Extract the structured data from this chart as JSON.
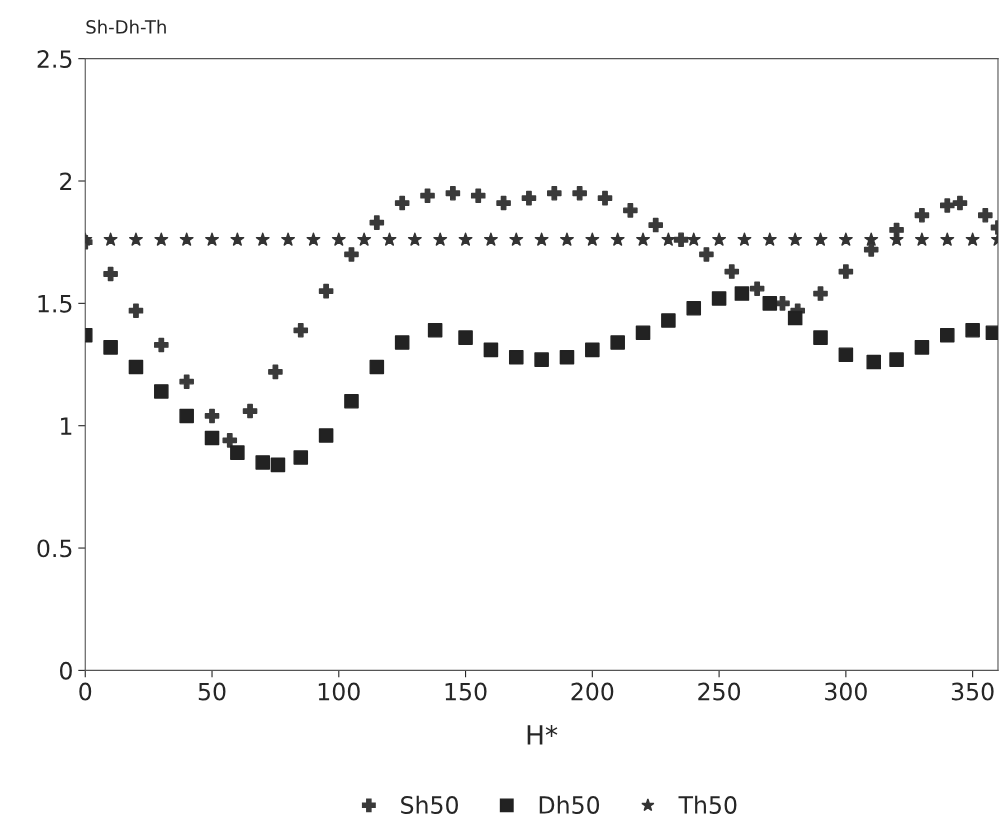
{
  "chart_data": {
    "type": "scatter",
    "xlabel": "H*",
    "ylabel": "Sh-Dh-Th",
    "xlim": [
      0,
      360
    ],
    "xticks": [
      0,
      50,
      100,
      150,
      200,
      250,
      300,
      350
    ],
    "ylim": [
      0,
      2.5
    ],
    "yticks": [
      0,
      0.5,
      1,
      1.5,
      2,
      2.5
    ],
    "grid": false,
    "legend": "bottom",
    "series": [
      {
        "name": "Sh50",
        "color": "#3a3a3a",
        "marker": "cross",
        "x": [
          0,
          10,
          20,
          30,
          40,
          50,
          57,
          65,
          75,
          85,
          95,
          105,
          115,
          125,
          135,
          145,
          155,
          165,
          175,
          185,
          195,
          205,
          215,
          225,
          235,
          245,
          255,
          265,
          275,
          281,
          290,
          300,
          310,
          320,
          330,
          340,
          345,
          355,
          360
        ],
        "values": [
          1.75,
          1.62,
          1.47,
          1.33,
          1.18,
          1.04,
          0.94,
          1.06,
          1.22,
          1.39,
          1.55,
          1.7,
          1.83,
          1.91,
          1.94,
          1.95,
          1.94,
          1.91,
          1.93,
          1.95,
          1.95,
          1.93,
          1.88,
          1.82,
          1.76,
          1.7,
          1.63,
          1.56,
          1.5,
          1.47,
          1.54,
          1.63,
          1.72,
          1.8,
          1.86,
          1.9,
          1.91,
          1.86,
          1.81
        ]
      },
      {
        "name": "Dh50",
        "color": "#222222",
        "marker": "square",
        "x": [
          0,
          10,
          20,
          30,
          40,
          50,
          60,
          70,
          76,
          85,
          95,
          105,
          115,
          125,
          138,
          150,
          160,
          170,
          180,
          190,
          200,
          210,
          220,
          230,
          240,
          250,
          259,
          270,
          280,
          290,
          300,
          311,
          320,
          330,
          340,
          350,
          358
        ],
        "values": [
          1.37,
          1.32,
          1.24,
          1.14,
          1.04,
          0.95,
          0.89,
          0.85,
          0.84,
          0.87,
          0.96,
          1.1,
          1.24,
          1.34,
          1.39,
          1.36,
          1.31,
          1.28,
          1.27,
          1.28,
          1.31,
          1.34,
          1.38,
          1.43,
          1.48,
          1.52,
          1.54,
          1.5,
          1.44,
          1.36,
          1.29,
          1.26,
          1.27,
          1.32,
          1.37,
          1.39,
          1.38
        ]
      },
      {
        "name": "Th50",
        "color": "#333333",
        "marker": "star",
        "x": [
          0,
          10,
          20,
          30,
          40,
          50,
          60,
          70,
          80,
          90,
          100,
          110,
          120,
          130,
          140,
          150,
          160,
          170,
          180,
          190,
          200,
          210,
          220,
          230,
          240,
          250,
          260,
          270,
          280,
          290,
          300,
          310,
          320,
          330,
          340,
          350,
          360
        ],
        "values": [
          1.76,
          1.76,
          1.76,
          1.76,
          1.76,
          1.76,
          1.76,
          1.76,
          1.76,
          1.76,
          1.76,
          1.76,
          1.76,
          1.76,
          1.76,
          1.76,
          1.76,
          1.76,
          1.76,
          1.76,
          1.76,
          1.76,
          1.76,
          1.76,
          1.76,
          1.76,
          1.76,
          1.76,
          1.76,
          1.76,
          1.76,
          1.76,
          1.76,
          1.76,
          1.76,
          1.76,
          1.76
        ]
      }
    ]
  }
}
